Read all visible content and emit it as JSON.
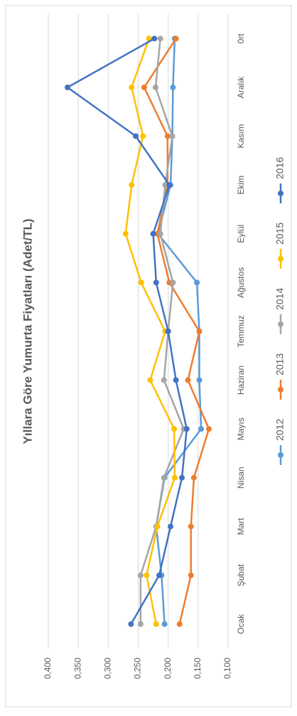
{
  "chart_data": {
    "type": "line",
    "title": "Yıllara Göre Yumurta Fiyatları (Adet/TL)",
    "categories": [
      "Ocak",
      "Şubat",
      "Mart",
      "Nisan",
      "Mayıs",
      "Haziran",
      "Temmuz",
      "Ağustos",
      "Eylül",
      "Ekim",
      "Kasım",
      "Aralık",
      "0rt"
    ],
    "series": [
      {
        "name": "2012",
        "color": "#5b9bd5",
        "values": [
          0.206,
          0.211,
          0.22,
          0.206,
          0.145,
          0.148,
          0.148,
          0.152,
          0.217,
          0.196,
          0.193,
          0.192,
          0.189
        ]
      },
      {
        "name": "2013",
        "color": "#ed7d31",
        "values": [
          0.181,
          0.162,
          0.162,
          0.157,
          0.132,
          0.167,
          0.148,
          0.198,
          0.218,
          0.201,
          0.201,
          0.24,
          0.187
        ]
      },
      {
        "name": "2014",
        "color": "#a5a5a5",
        "values": [
          0.246,
          0.246,
          0.22,
          0.207,
          0.174,
          0.207,
          0.2,
          0.192,
          0.213,
          0.205,
          0.193,
          0.221,
          0.213
        ]
      },
      {
        "name": "2015",
        "color": "#ffc000",
        "values": [
          0.22,
          0.236,
          0.218,
          0.189,
          0.19,
          0.23,
          0.205,
          0.245,
          0.271,
          0.261,
          0.242,
          0.261,
          0.232
        ]
      },
      {
        "name": "2016",
        "color": "#4472c4",
        "values": [
          0.262,
          0.215,
          0.196,
          0.177,
          0.169,
          0.187,
          0.2,
          0.22,
          0.225,
          0.198,
          0.254,
          0.368,
          0.223
        ]
      }
    ],
    "ylim": [
      0.1,
      0.4
    ],
    "yticks": [
      {
        "value": 0.4,
        "label": "0,400"
      },
      {
        "value": 0.35,
        "label": "0,350"
      },
      {
        "value": 0.3,
        "label": "0,300"
      },
      {
        "value": 0.25,
        "label": "0,250"
      },
      {
        "value": 0.2,
        "label": "0,200"
      },
      {
        "value": 0.15,
        "label": "0,150"
      },
      {
        "value": 0.1,
        "label": "0,100"
      }
    ],
    "grid": true
  }
}
